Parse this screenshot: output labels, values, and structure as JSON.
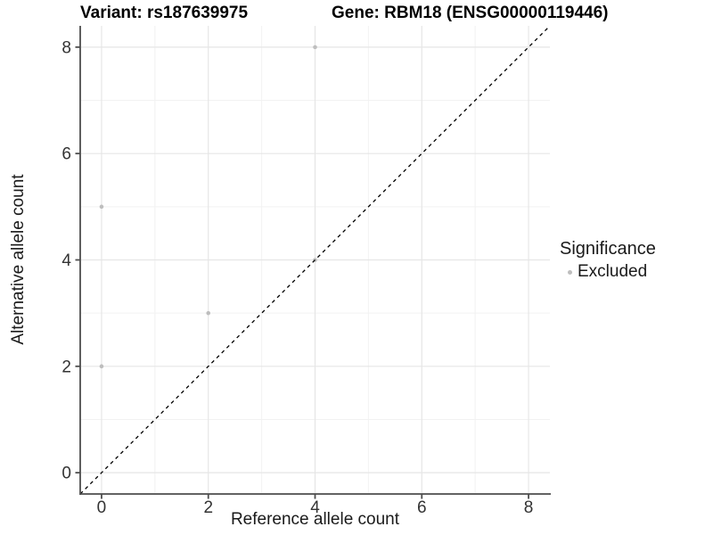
{
  "chart_data": {
    "type": "scatter",
    "title_left": "Variant: rs187639975",
    "title_right": "Gene: RBM18 (ENSG00000119446)",
    "xlabel": "Reference allele count",
    "ylabel": "Alternative allele count",
    "xlim": [
      -0.4,
      8.4
    ],
    "ylim": [
      -0.4,
      8.4
    ],
    "x_ticks": [
      0,
      2,
      4,
      6,
      8
    ],
    "y_ticks": [
      0,
      2,
      4,
      6,
      8
    ],
    "x_minor_ticks": [
      1,
      3,
      5,
      7
    ],
    "y_minor_ticks": [
      1,
      3,
      5,
      7
    ],
    "grid": true,
    "legend_position": "right",
    "series": [
      {
        "name": "Excluded",
        "color": "#bebebe",
        "points": [
          [
            0,
            2
          ],
          [
            0,
            5
          ],
          [
            2,
            3
          ],
          [
            4,
            4
          ],
          [
            4,
            8
          ]
        ]
      }
    ],
    "reference_line": {
      "type": "identity y=x",
      "style": "dashed",
      "color": "#000000"
    },
    "legend": {
      "title": "Significance",
      "entries": [
        {
          "label": "Excluded",
          "color": "#bebebe"
        }
      ]
    },
    "colors": {
      "axis_line": "#4d4d4d",
      "tick_label": "#333333",
      "grid_major": "#e6e6e6",
      "grid_minor": "#f2f2f2",
      "background": "#ffffff"
    }
  }
}
